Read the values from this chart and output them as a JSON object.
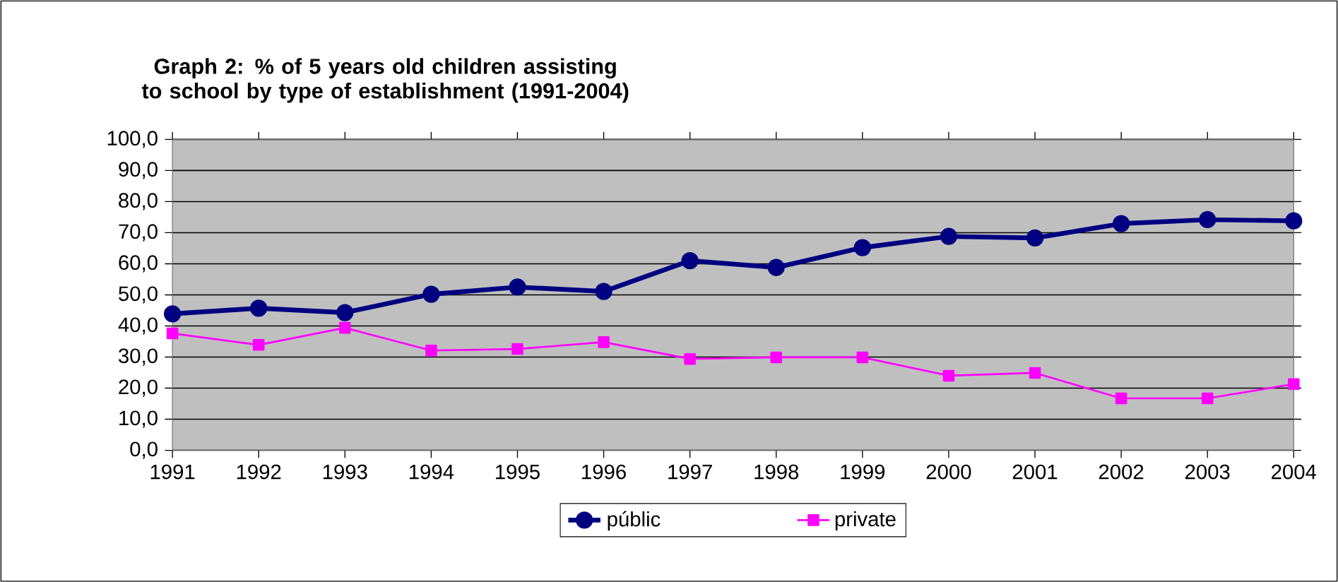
{
  "chart_data": {
    "type": "line",
    "title": "Graph 2: % of 5 years old children assisting to school by type of establishment  (1991-2004)",
    "categories": [
      "1991",
      "1992",
      "1993",
      "1994",
      "1995",
      "1996",
      "1997",
      "1998",
      "1999",
      "2000",
      "2001",
      "2002",
      "2003",
      "2004"
    ],
    "series": [
      {
        "name": "públic",
        "color": "#000080",
        "marker": "circle",
        "values": [
          43.9,
          45.7,
          44.3,
          50.2,
          52.5,
          51.1,
          61.0,
          58.8,
          65.2,
          68.8,
          68.3,
          72.9,
          74.2,
          73.8
        ]
      },
      {
        "name": "private",
        "color": "#ff00ff",
        "marker": "square",
        "values": [
          37.6,
          33.9,
          39.4,
          32.1,
          32.6,
          34.8,
          29.4,
          29.9,
          29.9,
          24.0,
          24.9,
          16.7,
          16.7,
          21.3
        ]
      }
    ],
    "ylim": [
      0,
      100
    ],
    "yticks": [
      {
        "value": 0,
        "label": "0,0"
      },
      {
        "value": 10,
        "label": "10,0"
      },
      {
        "value": 20,
        "label": "20,0"
      },
      {
        "value": 30,
        "label": "30,0"
      },
      {
        "value": 40,
        "label": "40,0"
      },
      {
        "value": 50,
        "label": "50,0"
      },
      {
        "value": 60,
        "label": "60,0"
      },
      {
        "value": 70,
        "label": "70,0"
      },
      {
        "value": 80,
        "label": "80,0"
      },
      {
        "value": 90,
        "label": "90,0"
      },
      {
        "value": 100,
        "label": "100,0"
      }
    ],
    "grid": "y",
    "legend": "bottom"
  }
}
